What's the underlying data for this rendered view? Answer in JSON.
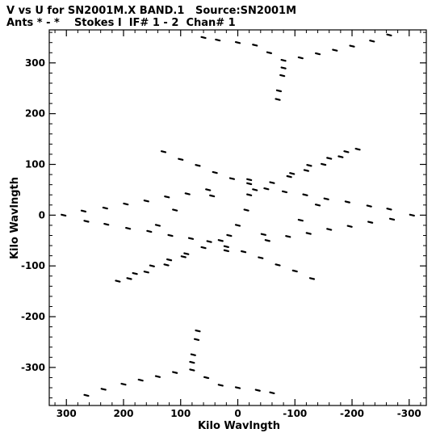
{
  "header": {
    "title_line1": "V vs U for SN2001M.X BAND.1   Source:SN2001M",
    "title_line2": "Ants * - *    Stokes I  IF# 1 - 2  Chan# 1"
  },
  "chart_data": {
    "type": "scatter",
    "title": "V vs U for SN2001M.X BAND.1   Source:SN2001M",
    "subtitle": "Ants * - *    Stokes I  IF# 1 - 2  Chan# 1",
    "xlabel": "Kilo Wavlngth",
    "ylabel": "Kilo Wavlngth",
    "xlim": [
      330,
      -330
    ],
    "ylim": [
      -375,
      365
    ],
    "x_ticks": [
      300,
      200,
      100,
      0,
      -100,
      -200,
      -300
    ],
    "y_ticks": [
      300,
      200,
      100,
      0,
      -100,
      -200,
      -300
    ],
    "x_tick_labels": [
      "300",
      "200",
      "100",
      "0",
      "-100",
      "-200",
      "-300"
    ],
    "y_tick_labels": [
      "300",
      "200",
      "100",
      "0",
      "-100",
      "-200",
      "-300"
    ],
    "grid": false,
    "marker_color": "#000000",
    "series": [
      {
        "points": [
          [
            305,
            0
          ],
          [
            270,
            8
          ],
          [
            232,
            14
          ],
          [
            196,
            22
          ],
          [
            160,
            28
          ],
          [
            124,
            36
          ],
          [
            88,
            42
          ],
          [
            52,
            50
          ],
          [
            -305,
            0
          ],
          [
            -270,
            -8
          ],
          [
            -232,
            -14
          ],
          [
            -196,
            -22
          ],
          [
            -160,
            -28
          ],
          [
            -124,
            -36
          ],
          [
            -88,
            -42
          ],
          [
            -52,
            -50
          ],
          [
            265,
            -12
          ],
          [
            230,
            -18
          ],
          [
            192,
            -26
          ],
          [
            155,
            -32
          ],
          [
            118,
            -40
          ],
          [
            82,
            -46
          ],
          [
            -265,
            12
          ],
          [
            -230,
            18
          ],
          [
            -192,
            26
          ],
          [
            -155,
            32
          ],
          [
            -118,
            40
          ],
          [
            -82,
            46
          ],
          [
            130,
            125
          ],
          [
            100,
            110
          ],
          [
            70,
            98
          ],
          [
            40,
            84
          ],
          [
            10,
            72
          ],
          [
            -20,
            62
          ],
          [
            -50,
            52
          ],
          [
            -130,
            -125
          ],
          [
            -100,
            -110
          ],
          [
            -70,
            -98
          ],
          [
            -40,
            -84
          ],
          [
            -10,
            -72
          ],
          [
            20,
            -62
          ],
          [
            50,
            -52
          ],
          [
            -210,
            130
          ],
          [
            -180,
            115
          ],
          [
            -150,
            100
          ],
          [
            -120,
            88
          ],
          [
            -90,
            76
          ],
          [
            -60,
            64
          ],
          [
            -30,
            50
          ],
          [
            210,
            -130
          ],
          [
            180,
            -115
          ],
          [
            150,
            -100
          ],
          [
            120,
            -88
          ],
          [
            90,
            -76
          ],
          [
            60,
            -64
          ],
          [
            30,
            -50
          ],
          [
            190,
            -125
          ],
          [
            160,
            -112
          ],
          [
            125,
            -98
          ],
          [
            95,
            -82
          ],
          [
            -190,
            125
          ],
          [
            -160,
            112
          ],
          [
            -125,
            98
          ],
          [
            -95,
            82
          ],
          [
            -20,
            70
          ],
          [
            -20,
            40
          ],
          [
            -15,
            10
          ],
          [
            0,
            -20
          ],
          [
            15,
            -40
          ],
          [
            20,
            -70
          ],
          [
            45,
            38
          ],
          [
            -45,
            -38
          ],
          [
            110,
            10
          ],
          [
            -110,
            -10
          ],
          [
            140,
            -20
          ],
          [
            -140,
            20
          ],
          [
            60,
            350
          ],
          [
            35,
            345
          ],
          [
            0,
            340
          ],
          [
            -30,
            335
          ],
          [
            -55,
            320
          ],
          [
            -80,
            305
          ],
          [
            -110,
            310
          ],
          [
            -140,
            318
          ],
          [
            -170,
            325
          ],
          [
            -200,
            333
          ],
          [
            -235,
            343
          ],
          [
            -265,
            355
          ],
          [
            -80,
            290
          ],
          [
            -78,
            275
          ],
          [
            -72,
            245
          ],
          [
            -70,
            228
          ],
          [
            -60,
            -350
          ],
          [
            -35,
            -345
          ],
          [
            0,
            -340
          ],
          [
            30,
            -335
          ],
          [
            55,
            -320
          ],
          [
            80,
            -305
          ],
          [
            110,
            -310
          ],
          [
            140,
            -318
          ],
          [
            170,
            -325
          ],
          [
            200,
            -333
          ],
          [
            235,
            -343
          ],
          [
            265,
            -355
          ],
          [
            80,
            -290
          ],
          [
            78,
            -275
          ],
          [
            72,
            -245
          ],
          [
            70,
            -228
          ]
        ]
      }
    ]
  }
}
